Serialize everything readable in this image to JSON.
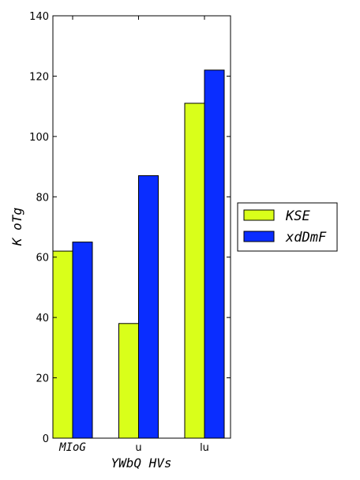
{
  "chart_data": {
    "type": "bar",
    "categories": [
      "MIoG",
      "u",
      "lu"
    ],
    "series": [
      {
        "name": "KSE",
        "values": [
          62,
          38,
          111
        ],
        "color": "#d9ff1a"
      },
      {
        "name": "xdDmF",
        "values": [
          65,
          87,
          122
        ],
        "color": "#0a2dff"
      }
    ],
    "xlabel": "YWbQ HVs",
    "ylabel": "K oTg",
    "ylim": [
      0,
      140
    ],
    "yticks": [
      0,
      20,
      40,
      60,
      80,
      100,
      120,
      140
    ],
    "grid": false,
    "legend_position": "right"
  }
}
